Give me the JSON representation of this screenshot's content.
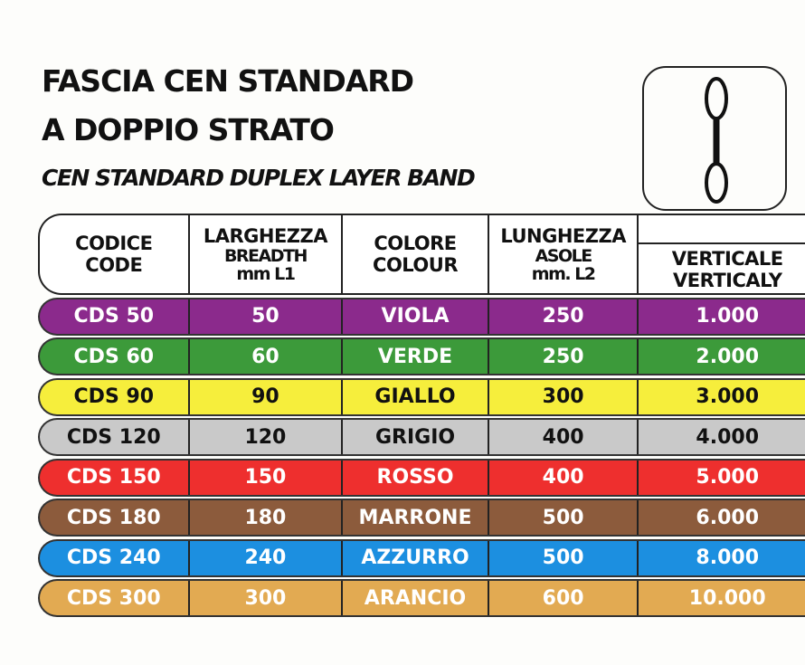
{
  "title_line1": "FASCIA CEN  STANDARD",
  "title_line2": "A DOPPIO STRATO",
  "subtitle": "CEN STANDARD DUPLEX LAYER BAND",
  "icon": "duplex-sling-with-eyes-icon",
  "headers": [
    {
      "l1": "CODICE",
      "l2": "CODE",
      "l3": ""
    },
    {
      "l1": "LARGHEZZA",
      "l2": "BREADTH",
      "l3": "mm L1"
    },
    {
      "l1": "COLORE",
      "l2": "COLOUR",
      "l3": ""
    },
    {
      "l1": "LUNGHEZZA",
      "l2": "ASOLE",
      "l3": "mm. L2"
    },
    {
      "l1": "VERTICALE",
      "l2": "VERTICALY",
      "l3": ""
    }
  ],
  "rows": [
    {
      "code": "CDS 50",
      "breadth": "50",
      "colour": "VIOLA",
      "length": "250",
      "vertical": "1.000",
      "bg": "#8b2a8c",
      "fg": "#ffffff"
    },
    {
      "code": "CDS 60",
      "breadth": "60",
      "colour": "VERDE",
      "length": "250",
      "vertical": "2.000",
      "bg": "#3c9a3a",
      "fg": "#ffffff"
    },
    {
      "code": "CDS 90",
      "breadth": "90",
      "colour": "GIALLO",
      "length": "300",
      "vertical": "3.000",
      "bg": "#f6ee3c",
      "fg": "#111111"
    },
    {
      "code": "CDS 120",
      "breadth": "120",
      "colour": "GRIGIO",
      "length": "400",
      "vertical": "4.000",
      "bg": "#c9c9c9",
      "fg": "#111111"
    },
    {
      "code": "CDS 150",
      "breadth": "150",
      "colour": "ROSSO",
      "length": "400",
      "vertical": "5.000",
      "bg": "#ee2f2e",
      "fg": "#ffffff"
    },
    {
      "code": "CDS 180",
      "breadth": "180",
      "colour": "MARRONE",
      "length": "500",
      "vertical": "6.000",
      "bg": "#8c5b3c",
      "fg": "#ffffff"
    },
    {
      "code": "CDS 240",
      "breadth": "240",
      "colour": "AZZURRO",
      "length": "500",
      "vertical": "8.000",
      "bg": "#1c8fe0",
      "fg": "#ffffff"
    },
    {
      "code": "CDS 300",
      "breadth": "300",
      "colour": "ARANCIO",
      "length": "600",
      "vertical": "10.000",
      "bg": "#e2aa52",
      "fg": "#ffffff"
    }
  ]
}
